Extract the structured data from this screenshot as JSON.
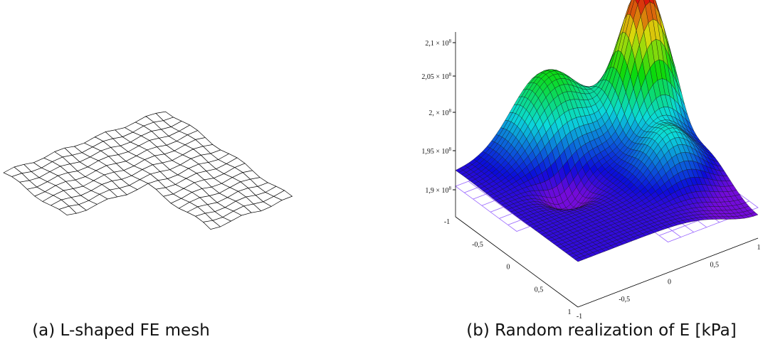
{
  "panels": [
    {
      "caption": "(a) L-shaped FE mesh"
    },
    {
      "caption": "(b) Random realization of E [kPa]",
      "z_ticks": [
        {
          "base": "2,1 × 10",
          "exp": "8"
        },
        {
          "base": "2,05 × 10",
          "exp": "8"
        },
        {
          "base": "2, × 10",
          "exp": "8"
        },
        {
          "base": "1,95 × 10",
          "exp": "8"
        },
        {
          "base": "1,9 × 10",
          "exp": "8"
        }
      ],
      "x_ticks": [
        "-1",
        "-0,5",
        "0",
        "0,5",
        "1"
      ],
      "y_ticks": [
        "-1",
        "-0,5",
        "0",
        "0,5",
        "1"
      ]
    }
  ]
}
